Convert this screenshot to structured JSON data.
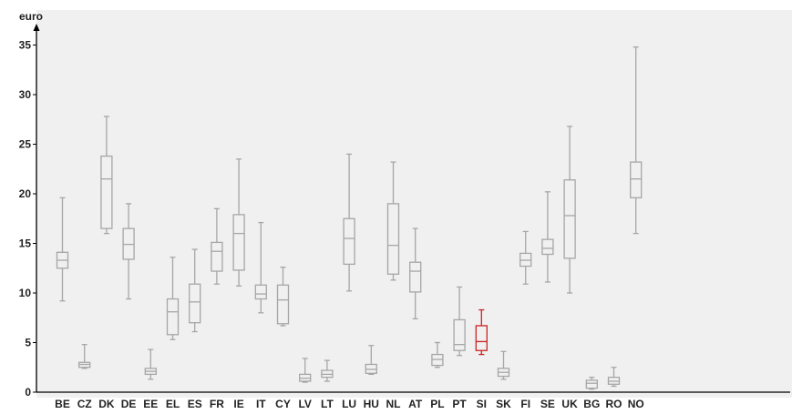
{
  "chart_data": {
    "type": "boxplot",
    "ylabel": "euro",
    "ylim": [
      0,
      36
    ],
    "yticks": [
      0,
      5,
      10,
      15,
      20,
      25,
      30,
      35
    ],
    "grid": false,
    "plot_background": "#f0f0f0",
    "box_color": "#a6a6a6",
    "highlight_color": "#cc2222",
    "highlight_category": "SI",
    "categories": [
      "BE",
      "CZ",
      "DK",
      "DE",
      "EE",
      "EL",
      "ES",
      "FR",
      "IE",
      "IT",
      "CY",
      "LV",
      "LT",
      "LU",
      "HU",
      "NL",
      "AT",
      "PL",
      "PT",
      "SI",
      "SK",
      "FI",
      "SE",
      "UK",
      "BG",
      "RO",
      "NO"
    ],
    "boxes": [
      {
        "min": 9.2,
        "q1": 12.5,
        "median": 13.3,
        "q3": 14.1,
        "max": 19.6
      },
      {
        "min": 2.4,
        "q1": 2.5,
        "median": 2.8,
        "q3": 3.0,
        "max": 4.8
      },
      {
        "min": 16.0,
        "q1": 16.5,
        "median": 21.5,
        "q3": 23.8,
        "max": 27.8
      },
      {
        "min": 9.4,
        "q1": 13.4,
        "median": 14.9,
        "q3": 16.5,
        "max": 19.0
      },
      {
        "min": 1.3,
        "q1": 1.8,
        "median": 2.1,
        "q3": 2.4,
        "max": 4.3
      },
      {
        "min": 5.3,
        "q1": 5.8,
        "median": 8.1,
        "q3": 9.4,
        "max": 13.6
      },
      {
        "min": 6.1,
        "q1": 7.0,
        "median": 9.1,
        "q3": 10.9,
        "max": 14.4
      },
      {
        "min": 10.9,
        "q1": 12.2,
        "median": 14.2,
        "q3": 15.1,
        "max": 18.5
      },
      {
        "min": 10.7,
        "q1": 12.3,
        "median": 16.0,
        "q3": 17.9,
        "max": 23.5
      },
      {
        "min": 8.0,
        "q1": 9.4,
        "median": 9.9,
        "q3": 10.8,
        "max": 17.1
      },
      {
        "min": 6.7,
        "q1": 6.9,
        "median": 9.3,
        "q3": 10.8,
        "max": 12.6
      },
      {
        "min": 1.0,
        "q1": 1.1,
        "median": 1.4,
        "q3": 1.8,
        "max": 3.4
      },
      {
        "min": 1.1,
        "q1": 1.5,
        "median": 1.8,
        "q3": 2.2,
        "max": 3.2
      },
      {
        "min": 10.2,
        "q1": 12.9,
        "median": 15.5,
        "q3": 17.5,
        "max": 24.0
      },
      {
        "min": 1.8,
        "q1": 1.9,
        "median": 2.3,
        "q3": 2.8,
        "max": 4.7
      },
      {
        "min": 11.3,
        "q1": 11.9,
        "median": 14.8,
        "q3": 19.0,
        "max": 23.2
      },
      {
        "min": 7.4,
        "q1": 10.1,
        "median": 12.2,
        "q3": 13.1,
        "max": 16.5
      },
      {
        "min": 2.5,
        "q1": 2.7,
        "median": 3.3,
        "q3": 3.8,
        "max": 5.0
      },
      {
        "min": 3.7,
        "q1": 4.2,
        "median": 4.8,
        "q3": 7.3,
        "max": 10.6
      },
      {
        "min": 3.8,
        "q1": 4.2,
        "median": 5.1,
        "q3": 6.7,
        "max": 8.3
      },
      {
        "min": 1.3,
        "q1": 1.6,
        "median": 2.0,
        "q3": 2.4,
        "max": 4.1
      },
      {
        "min": 10.9,
        "q1": 12.7,
        "median": 13.3,
        "q3": 14.0,
        "max": 16.2
      },
      {
        "min": 11.1,
        "q1": 13.9,
        "median": 14.5,
        "q3": 15.4,
        "max": 20.2
      },
      {
        "min": 10.0,
        "q1": 13.5,
        "median": 17.8,
        "q3": 21.4,
        "max": 26.8
      },
      {
        "min": 0.3,
        "q1": 0.4,
        "median": 0.9,
        "q3": 1.2,
        "max": 1.5
      },
      {
        "min": 0.6,
        "q1": 0.8,
        "median": 1.1,
        "q3": 1.5,
        "max": 2.5
      },
      {
        "min": 16.0,
        "q1": 19.6,
        "median": 21.5,
        "q3": 23.2,
        "max": 34.8
      }
    ]
  }
}
